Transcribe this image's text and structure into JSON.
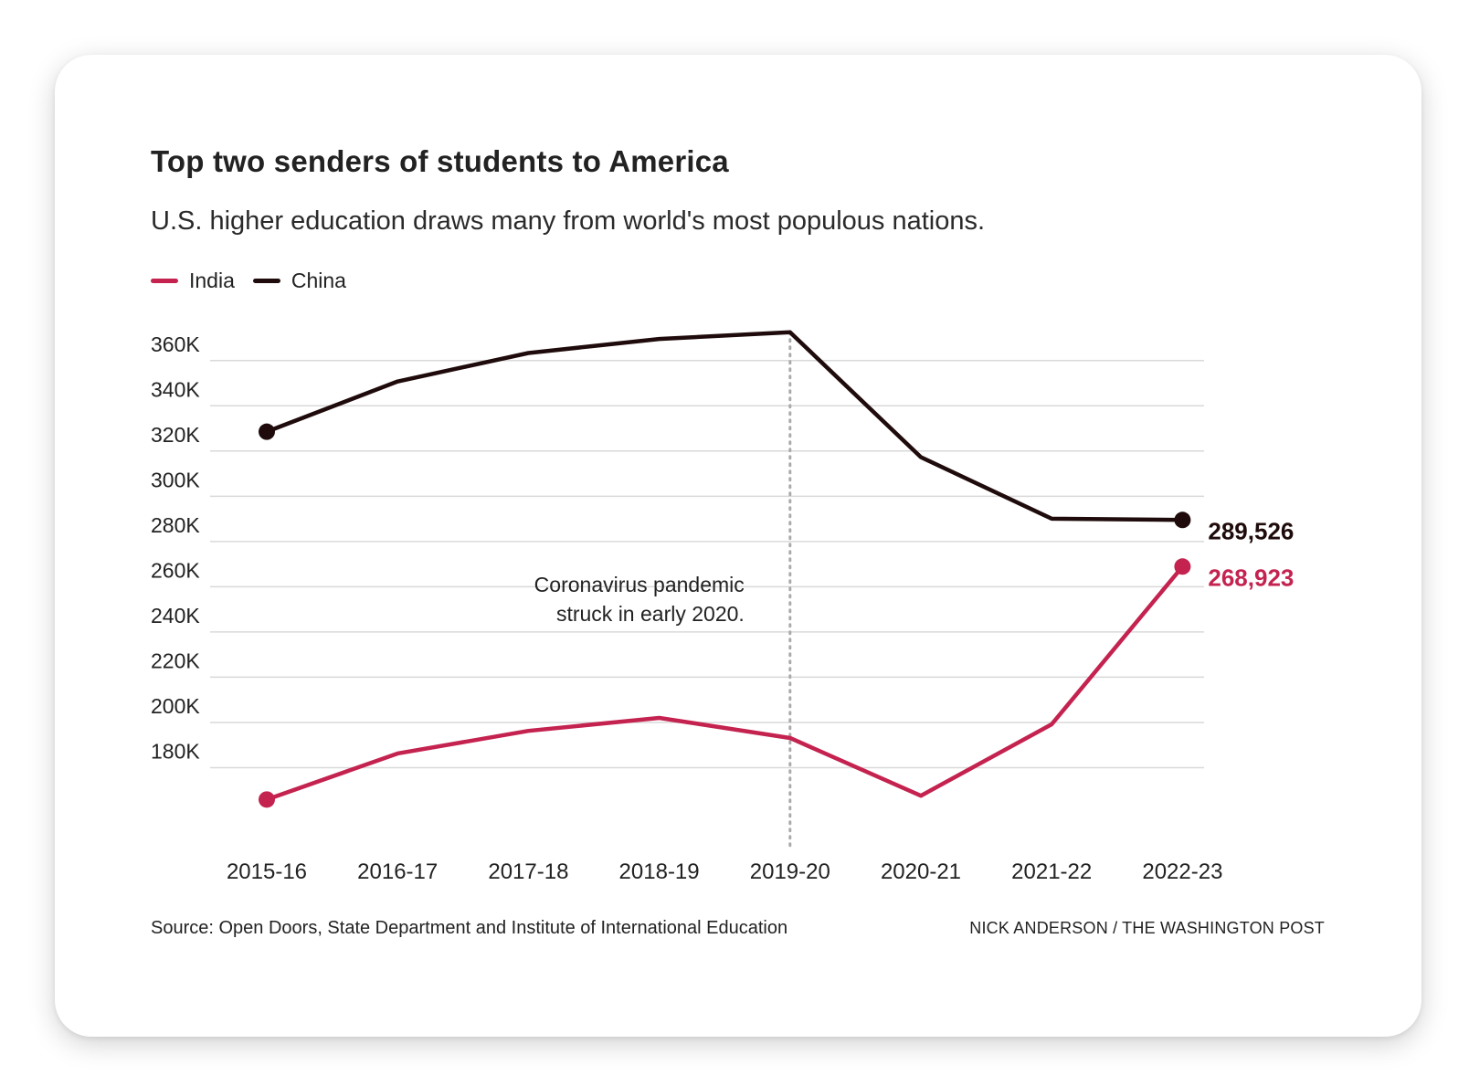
{
  "title": "Top two senders of students to America",
  "subtitle": "U.S. higher education draws many from world's most populous nations.",
  "legend": [
    {
      "label": "India",
      "color": "#c4224f"
    },
    {
      "label": "China",
      "color": "#1f0b0b"
    }
  ],
  "annotation": {
    "line1": "Coronavirus pandemic",
    "line2": "struck in early 2020.",
    "at_category": "2019-20"
  },
  "source": "Source: Open Doors, State Department and Institute of International Education",
  "credit": "NICK ANDERSON / THE WASHINGTON POST",
  "chart_data": {
    "type": "line",
    "title": "Top two senders of students to America",
    "xlabel": "",
    "ylabel": "",
    "categories": [
      "2015-16",
      "2016-17",
      "2017-18",
      "2018-19",
      "2019-20",
      "2020-21",
      "2021-22",
      "2022-23"
    ],
    "ylim": [
      160000,
      370000
    ],
    "yticks": [
      180000,
      200000,
      220000,
      240000,
      260000,
      280000,
      300000,
      320000,
      340000,
      360000
    ],
    "ytick_labels": [
      "180K",
      "200K",
      "220K",
      "240K",
      "260K",
      "280K",
      "300K",
      "320K",
      "340K",
      "360K"
    ],
    "grid": true,
    "legend_position": "top-left",
    "series": [
      {
        "name": "China",
        "color": "#1f0b0b",
        "values": [
          328547,
          350755,
          363341,
          369548,
          372532,
          317299,
          290086,
          289526
        ],
        "end_label": "289,526"
      },
      {
        "name": "India",
        "color": "#c4224f",
        "values": [
          165918,
          186267,
          196271,
          202014,
          193124,
          167582,
          199182,
          268923
        ],
        "end_label": "268,923"
      }
    ]
  }
}
